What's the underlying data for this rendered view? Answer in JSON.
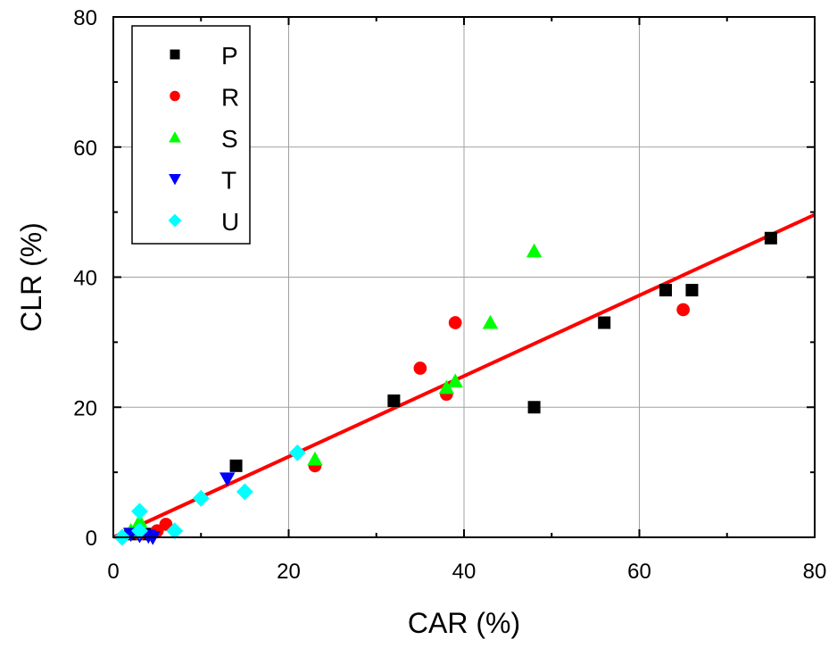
{
  "chart_data": {
    "type": "scatter",
    "xlabel": "CAR (%)",
    "ylabel": "CLR (%)",
    "xlim": [
      0,
      80
    ],
    "ylim": [
      0,
      80
    ],
    "xticks": [
      0,
      20,
      40,
      60,
      80
    ],
    "yticks": [
      0,
      20,
      40,
      60,
      80
    ],
    "grid": true,
    "legend_position": "top-left",
    "series": [
      {
        "name": "P",
        "marker": "square",
        "color": "#000000",
        "points": [
          [
            14,
            11
          ],
          [
            32,
            21
          ],
          [
            48,
            20
          ],
          [
            56,
            33
          ],
          [
            63,
            38
          ],
          [
            66,
            38
          ],
          [
            75,
            46
          ],
          [
            2,
            0.5
          ],
          [
            4,
            0.5
          ]
        ]
      },
      {
        "name": "R",
        "marker": "circle",
        "color": "#ff0000",
        "points": [
          [
            23,
            11
          ],
          [
            35,
            26
          ],
          [
            38,
            22
          ],
          [
            39,
            33
          ],
          [
            65,
            35
          ],
          [
            6,
            2
          ],
          [
            5,
            1
          ],
          [
            3,
            0.5
          ]
        ]
      },
      {
        "name": "S",
        "marker": "triangle-up",
        "color": "#00ff00",
        "points": [
          [
            23,
            12
          ],
          [
            38,
            23
          ],
          [
            39,
            24
          ],
          [
            43,
            33
          ],
          [
            48,
            44
          ],
          [
            3,
            2.5
          ],
          [
            2,
            1
          ]
        ]
      },
      {
        "name": "T",
        "marker": "triangle-down",
        "color": "#0000ff",
        "points": [
          [
            13,
            9
          ],
          [
            2,
            0.5
          ],
          [
            3,
            0.3
          ],
          [
            4,
            0.2
          ],
          [
            4.5,
            0
          ]
        ]
      },
      {
        "name": "U",
        "marker": "diamond",
        "color": "#00ffff",
        "points": [
          [
            3,
            4
          ],
          [
            7,
            1
          ],
          [
            10,
            6
          ],
          [
            15,
            7
          ],
          [
            21,
            13
          ],
          [
            1,
            0
          ],
          [
            3,
            1
          ]
        ]
      }
    ],
    "fit_line": {
      "color": "#ff0000",
      "points": [
        [
          0,
          0
        ],
        [
          80,
          49.6
        ]
      ]
    }
  }
}
